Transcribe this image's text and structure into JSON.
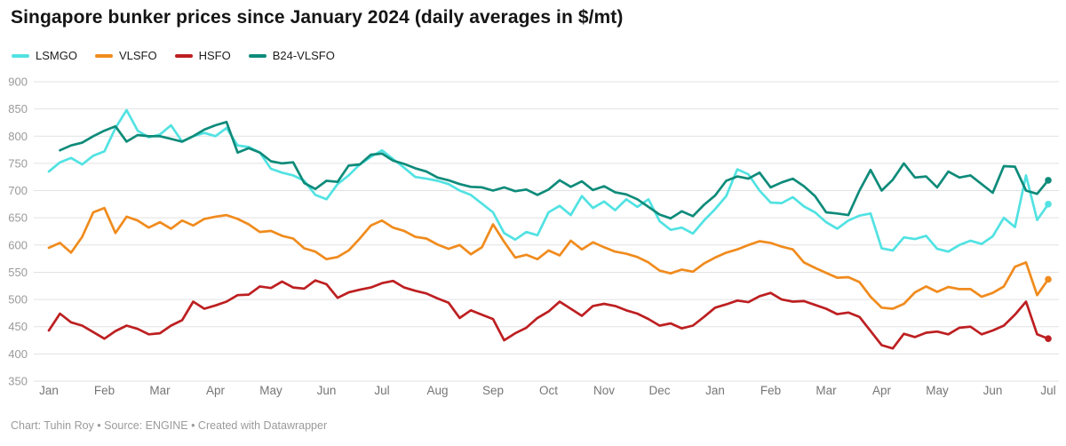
{
  "header": {
    "title": "Singapore bunker prices since January 2024 (daily averages in $/mt)"
  },
  "footer": {
    "credit": "Chart: Tuhin Roy • Source: ENGINE • Created with Datawrapper"
  },
  "chart_data": {
    "type": "line",
    "title": "Singapore bunker prices since January 2024 (daily averages in $/mt)",
    "xlabel": "",
    "ylabel": "",
    "grid": true,
    "legend_position": "top-left",
    "x_axis": {
      "tick_labels": [
        "Jan",
        "Feb",
        "Mar",
        "Apr",
        "May",
        "Jun",
        "Jul",
        "Aug",
        "Sep",
        "Oct",
        "Nov",
        "Dec",
        "Jan",
        "Feb",
        "Mar",
        "Apr",
        "May",
        "Jun",
        "Jul"
      ]
    },
    "y_axis": {
      "min": 350,
      "max": 900,
      "step": 50,
      "tick_labels": [
        "350",
        "400",
        "450",
        "500",
        "550",
        "600",
        "650",
        "700",
        "750",
        "800",
        "850",
        "900"
      ]
    },
    "samples_per_month": 5,
    "end_dot": true,
    "series": [
      {
        "name": "LSMGO",
        "color": "#52e2e2",
        "values": [
          735,
          752,
          760,
          748,
          764,
          772,
          815,
          848,
          810,
          798,
          803,
          820,
          790,
          800,
          806,
          800,
          815,
          783,
          780,
          770,
          740,
          733,
          728,
          718,
          692,
          684,
          712,
          728,
          748,
          762,
          774,
          758,
          742,
          725,
          722,
          718,
          712,
          700,
          692,
          676,
          660,
          622,
          610,
          624,
          618,
          660,
          672,
          655,
          690,
          668,
          680,
          664,
          684,
          670,
          684,
          644,
          628,
          632,
          621,
          645,
          666,
          690,
          739,
          730,
          700,
          678,
          677,
          688,
          671,
          660,
          642,
          630,
          645,
          654,
          658,
          594,
          590,
          614,
          611,
          617,
          593,
          588,
          600,
          608,
          602,
          616,
          650,
          633,
          728,
          646,
          675
        ]
      },
      {
        "name": "VLSFO",
        "color": "#f08b1d",
        "values": [
          595,
          604,
          586,
          615,
          660,
          668,
          622,
          652,
          645,
          632,
          642,
          630,
          645,
          636,
          648,
          652,
          655,
          648,
          638,
          624,
          626,
          617,
          612,
          594,
          588,
          574,
          578,
          590,
          612,
          636,
          645,
          632,
          626,
          615,
          612,
          601,
          593,
          600,
          583,
          596,
          638,
          606,
          577,
          582,
          574,
          590,
          581,
          608,
          592,
          605,
          596,
          588,
          584,
          578,
          568,
          553,
          548,
          555,
          551,
          566,
          577,
          586,
          592,
          600,
          607,
          604,
          597,
          592,
          568,
          558,
          549,
          540,
          541,
          532,
          505,
          485,
          483,
          492,
          513,
          524,
          514,
          523,
          519,
          519,
          505,
          512,
          524,
          560,
          568,
          508,
          537
        ]
      },
      {
        "name": "HSFO",
        "color": "#bd1f21",
        "values": [
          443,
          474,
          458,
          452,
          440,
          428,
          442,
          452,
          446,
          436,
          438,
          452,
          462,
          496,
          483,
          489,
          496,
          508,
          509,
          524,
          521,
          533,
          522,
          520,
          535,
          528,
          503,
          513,
          518,
          522,
          530,
          534,
          522,
          516,
          511,
          502,
          494,
          466,
          480,
          472,
          464,
          425,
          438,
          448,
          466,
          478,
          496,
          483,
          470,
          488,
          492,
          488,
          480,
          474,
          464,
          452,
          456,
          447,
          452,
          468,
          485,
          491,
          498,
          495,
          506,
          512,
          500,
          496,
          497,
          490,
          483,
          473,
          476,
          468,
          442,
          416,
          410,
          437,
          431,
          439,
          441,
          436,
          448,
          450,
          436,
          443,
          452,
          472,
          496,
          436,
          428
        ]
      },
      {
        "name": "B24-VLSFO",
        "color": "#0e8b7a",
        "values": [
          null,
          774,
          783,
          788,
          800,
          810,
          818,
          790,
          802,
          800,
          800,
          795,
          790,
          800,
          812,
          820,
          826,
          770,
          778,
          770,
          754,
          750,
          752,
          714,
          703,
          718,
          716,
          746,
          748,
          766,
          768,
          755,
          749,
          741,
          735,
          724,
          719,
          712,
          707,
          706,
          700,
          706,
          699,
          702,
          692,
          702,
          719,
          707,
          717,
          701,
          708,
          697,
          693,
          684,
          670,
          656,
          649,
          662,
          653,
          674,
          691,
          718,
          726,
          722,
          733,
          706,
          715,
          722,
          708,
          690,
          660,
          658,
          655,
          700,
          738,
          700,
          720,
          750,
          724,
          726,
          706,
          735,
          724,
          728,
          712,
          696,
          745,
          744,
          700,
          694,
          719
        ]
      }
    ],
    "style": {
      "grid_color": "#e2e2e2",
      "y_tick_color": "#9a9a9a",
      "x_tick_color": "#767676",
      "line_width": 2.7
    }
  }
}
